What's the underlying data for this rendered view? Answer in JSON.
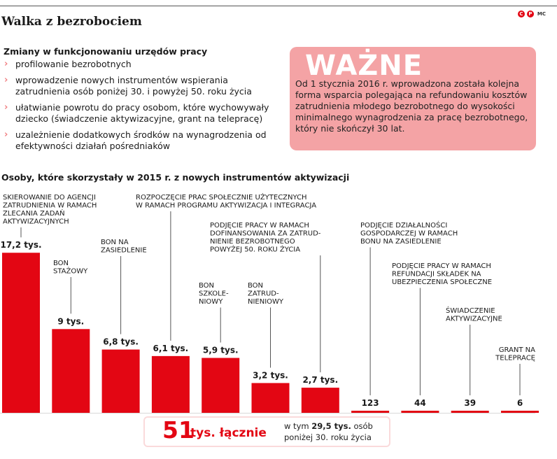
{
  "header": {
    "title": "Walka z bezrobociem",
    "brand_c": "C",
    "brand_p": "P",
    "brand_mc": "MC"
  },
  "changes": {
    "title": "Zmiany w funkcjonowaniu urzędów pracy",
    "bullet_glyph": "›",
    "items": [
      "profilowanie bezrobotnych",
      "wprowadzenie nowych instrumentów wspierania zatrudnienia osób poniżej 30. i powyżej 50. roku życia",
      "ułatwianie powrotu do pracy osobom, które wychowywały dziecko (świadczenie aktywizacyjne, grant na telepracę)",
      "uzależnienie dodatkowych środków na wynagrodzenia od efektywności działań pośredniaków"
    ]
  },
  "important": {
    "heading": "WAŻNE",
    "text": "Od 1 stycznia 2016 r. wprowadzona została kolejna forma wsparcia polegająca na refundowaniu kosztów zatrudnienia młodego bezrobotnego do wysokości minimalnego wynagrodzenia za pracę bezrobotnego, który nie skończył 30 lat."
  },
  "colors": {
    "bar": "#e30613",
    "accent_pink": "#f4a3a5"
  },
  "chart_data": {
    "type": "bar",
    "title": "Osoby, które skorzystały w 2015 r. z nowych instrumentów aktywizacji",
    "unit": "tys.",
    "categories": [
      "SKIEROWANIE DO AGENCJI ZATRUDNIENIA W RAMACH ZLECANIA ZADAŃ AKTYWIZACYJNYCH",
      "BON STAŻOWY",
      "BON NA ZASIEDLENIE",
      "ROZPOCZĘCIE PRAC SPOŁECZNIE UŻYTECZNYCH W RAMACH PROGRAMU AKTYWIZACJA I INTEGRACJA",
      "BON SZKOLENIOWY",
      "BON ZATRUDNIENIOWY",
      "PODJĘCIE PRACY W RAMACH DOFINANSOWANIA ZA ZATRUDNIENIE BEZROBOTNEGO POWYŻEJ 50. ROKU ŻYCIA",
      "PODJĘCIE DZIAŁALNOŚCI GOSPODARCZEJ W RAMACH BONU NA ZASIEDLENIE",
      "PODJĘCIE PRACY W RAMACH REFUNDACJI SKŁADEK NA UBEZPIECZENIA SPOŁECZNE",
      "ŚWIADCZENIE AKTYWIZACYJNE",
      "GRANT NA TELEPRACĘ"
    ],
    "label_lines": [
      [
        "SKIEROWANIE DO AGENCJI",
        "ZATRUDNIENIA W RAMACH",
        "ZLECANIA ZADAŃ",
        "AKTYWIZACYJNYCH"
      ],
      [
        "BON",
        "STAŻOWY"
      ],
      [
        "BON NA",
        "ZASIEDLENIE"
      ],
      [
        "ROZPOCZĘCIE PRAC SPOŁECZNIE UŻYTECZNYCH",
        "W RAMACH PROGRAMU AKTYWIZACJA I INTEGRACJA"
      ],
      [
        "BON",
        "SZKOLE-",
        "NIOWY"
      ],
      [
        "BON",
        "ZATRUD-",
        "NIENIOWY"
      ],
      [
        "PODJĘCIE PRACY W RAMACH",
        "DOFINANSOWANIA ZA ZATRUD-",
        "NIENIE BEZROBOTNEGO",
        "POWYŻEJ 50. ROKU ŻYCIA"
      ],
      [
        "PODJĘCIE DZIAŁALNOŚCI",
        "GOSPODARCZEJ W RAMACH",
        "BONU NA ZASIEDLENIE"
      ],
      [
        "PODJĘCIE PRACY W RAMACH",
        "REFUNDACJI SKŁADEK NA",
        "UBEZPIECZENIA SPOŁECZNE"
      ],
      [
        "ŚWIADCZENIE",
        "AKTYWIZACYJNE"
      ],
      [
        "GRANT NA",
        "TELEPRACĘ"
      ]
    ],
    "values": [
      17.2,
      9,
      6.8,
      6.1,
      5.9,
      3.2,
      2.7,
      0.123,
      0.044,
      0.039,
      0.006
    ],
    "value_labels": [
      "17,2 tys.",
      "9 tys.",
      "6,8 tys.",
      "6,1 tys.",
      "5,9 tys.",
      "3,2 tys.",
      "2,7 tys.",
      "123",
      "44",
      "39",
      "6"
    ],
    "total": {
      "number": "51",
      "word": "tys. łącznie",
      "sub_prefix": "w tym",
      "sub_bold": "29,5 tys.",
      "sub_suffix": "osób poniżej 30. roku życia"
    }
  }
}
